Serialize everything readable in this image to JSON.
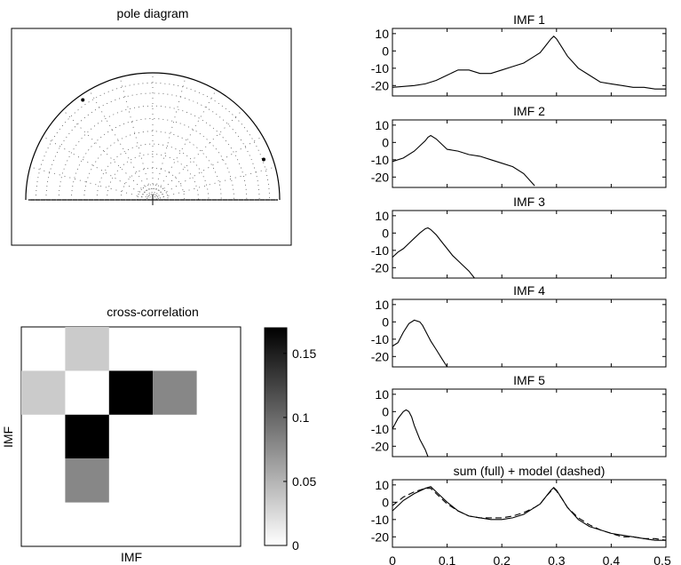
{
  "figure": {
    "pole_title": "pole diagram",
    "xcorr_title": "cross-correlation",
    "xcorr_xlabel": "IMF",
    "xcorr_ylabel": "IMF"
  },
  "chart_data": [
    {
      "id": "pole",
      "type": "scatter",
      "title": "pole diagram",
      "points": [
        {
          "angle_deg": 125,
          "radius": 0.96,
          "emphasis": true
        },
        {
          "angle_deg": 20,
          "radius": 0.93,
          "emphasis": true
        }
      ],
      "rings": [
        0.25,
        0.36,
        0.44,
        0.54,
        0.64,
        0.74,
        0.84,
        0.92
      ],
      "grid": "dotted",
      "dot_count_estimate": 90
    },
    {
      "id": "xcorr",
      "type": "heatmap",
      "title": "cross-correlation",
      "xlabel": "IMF",
      "ylabel": "IMF",
      "rows": 5,
      "cols": 5,
      "matrix": [
        [
          0,
          0.035,
          0,
          0,
          0
        ],
        [
          0.035,
          0,
          0.17,
          0.08,
          0
        ],
        [
          0,
          0.17,
          0,
          0,
          0
        ],
        [
          0,
          0.08,
          0,
          0,
          0
        ],
        [
          0,
          0,
          0,
          0,
          0
        ]
      ],
      "colorbar": {
        "range": [
          0,
          0.17
        ],
        "ticks": [
          0,
          0.05,
          0.1,
          0.15
        ],
        "tick_labels": [
          "0",
          "0.05",
          "0.1",
          "0.15"
        ]
      }
    },
    {
      "id": "imf_spectra",
      "type": "line",
      "xlim": [
        0,
        0.5
      ],
      "ylim": [
        -26,
        13
      ],
      "yticks": [
        10,
        0,
        -10,
        -20
      ],
      "ytick_labels": [
        "10",
        "0",
        "-10",
        "-20"
      ],
      "xticks": [
        0,
        0.1,
        0.2,
        0.3,
        0.4,
        0.5
      ],
      "xtick_labels": [
        "0",
        "0.1",
        "0.2",
        "0.3",
        "0.4",
        "0.5"
      ],
      "panels": [
        {
          "title": "IMF 1",
          "x": [
            0,
            0.02,
            0.04,
            0.06,
            0.08,
            0.1,
            0.12,
            0.14,
            0.16,
            0.18,
            0.2,
            0.22,
            0.24,
            0.26,
            0.27,
            0.28,
            0.29,
            0.295,
            0.3,
            0.31,
            0.32,
            0.34,
            0.36,
            0.38,
            0.4,
            0.42,
            0.44,
            0.46,
            0.48,
            0.5
          ],
          "y": [
            -21,
            -20.5,
            -20,
            -19,
            -17,
            -14,
            -11,
            -11,
            -13,
            -13,
            -11,
            -9,
            -7,
            -3,
            -1,
            3,
            7,
            8.5,
            7,
            2,
            -3,
            -10,
            -14,
            -18,
            -19,
            -20,
            -21,
            -21,
            -22,
            -22
          ]
        },
        {
          "title": "IMF 2",
          "x": [
            0,
            0.02,
            0.04,
            0.06,
            0.065,
            0.07,
            0.08,
            0.1,
            0.12,
            0.14,
            0.16,
            0.18,
            0.2,
            0.22,
            0.24,
            0.26
          ],
          "y": [
            -11,
            -9,
            -5,
            1,
            3,
            4,
            2,
            -4,
            -5,
            -7,
            -8,
            -10,
            -12,
            -14,
            -18,
            -25
          ]
        },
        {
          "title": "IMF 3",
          "x": [
            0,
            0.01,
            0.02,
            0.03,
            0.04,
            0.05,
            0.06,
            0.065,
            0.07,
            0.08,
            0.09,
            0.1,
            0.11,
            0.12,
            0.14,
            0.15
          ],
          "y": [
            -14,
            -11,
            -9,
            -6,
            -3,
            0,
            2.5,
            3,
            2,
            -1,
            -5,
            -9,
            -13,
            -16,
            -22,
            -26
          ]
        },
        {
          "title": "IMF 4",
          "x": [
            0,
            0.01,
            0.02,
            0.03,
            0.04,
            0.05,
            0.055,
            0.06,
            0.07,
            0.08,
            0.09,
            0.1
          ],
          "y": [
            -14,
            -12,
            -6,
            -1,
            1,
            0,
            -2,
            -5,
            -11,
            -16,
            -21,
            -26
          ]
        },
        {
          "title": "IMF 5",
          "x": [
            0,
            0.01,
            0.02,
            0.025,
            0.03,
            0.035,
            0.04,
            0.05,
            0.06,
            0.065
          ],
          "y": [
            -10,
            -4,
            0,
            1,
            0,
            -3,
            -8,
            -16,
            -22,
            -26
          ]
        },
        {
          "title": "sum (full) + model (dashed)",
          "series": [
            {
              "style": "solid",
              "x": [
                0,
                0.02,
                0.04,
                0.06,
                0.07,
                0.08,
                0.1,
                0.12,
                0.14,
                0.16,
                0.18,
                0.2,
                0.22,
                0.24,
                0.26,
                0.27,
                0.28,
                0.29,
                0.295,
                0.3,
                0.31,
                0.32,
                0.34,
                0.36,
                0.38,
                0.4,
                0.42,
                0.44,
                0.46,
                0.48,
                0.5
              ],
              "y": [
                -5,
                1,
                5,
                8,
                9,
                6,
                0,
                -5,
                -8,
                -9,
                -10,
                -10,
                -9,
                -7,
                -3,
                -1,
                3,
                7,
                8.5,
                7,
                2,
                -3,
                -10,
                -14,
                -16,
                -18,
                -19,
                -20,
                -21,
                -22,
                -22
              ]
            },
            {
              "style": "dashed",
              "x": [
                0,
                0.02,
                0.04,
                0.06,
                0.07,
                0.08,
                0.1,
                0.12,
                0.14,
                0.16,
                0.18,
                0.2,
                0.22,
                0.24,
                0.26,
                0.27,
                0.28,
                0.29,
                0.295,
                0.3,
                0.31,
                0.32,
                0.34,
                0.36,
                0.38,
                0.4,
                0.42,
                0.44,
                0.46,
                0.48,
                0.5
              ],
              "y": [
                -2,
                3,
                6,
                8,
                8,
                5,
                -1,
                -5,
                -8,
                -9,
                -9,
                -9,
                -8,
                -6,
                -3,
                -1,
                3,
                6.5,
                8,
                6.5,
                2,
                -3,
                -9,
                -13,
                -16,
                -18,
                -20,
                -20,
                -21,
                -21,
                -22
              ]
            }
          ]
        }
      ]
    }
  ]
}
